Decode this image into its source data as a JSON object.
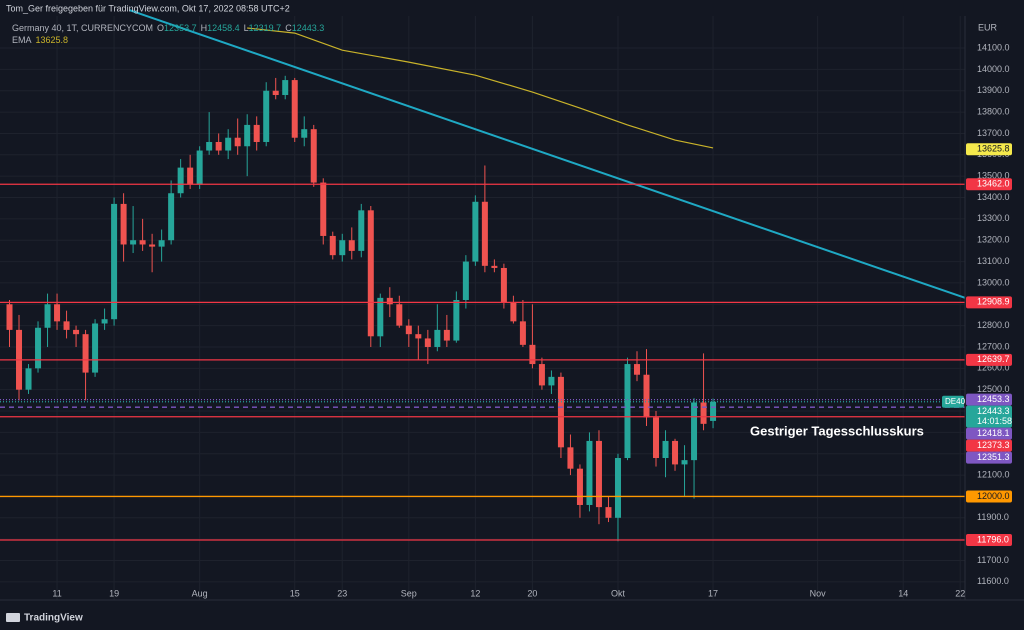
{
  "header": "Tom_Ger freigegeben für TradingView.com, Okt 17, 2022 08:58 UTC+2",
  "legend": {
    "symbol": "Germany 40, 1T, CURRENCYCOM",
    "ohlc": [
      {
        "key": "O",
        "value": "12353.7"
      },
      {
        "key": "H",
        "value": "12458.4"
      },
      {
        "key": "L",
        "value": "12319.7"
      },
      {
        "key": "C",
        "value": "12443.3"
      }
    ],
    "ema_name": "EMA",
    "ema_value": "13625.8"
  },
  "footer": "TradingView",
  "chart_data": {
    "type": "candlestick",
    "currency": "EUR",
    "annotation": "Gestriger Tagesschlusskurs",
    "up_color": "#26a69a",
    "down_color": "#ef5350",
    "xlim": [
      -1,
      100.5
    ],
    "ylim": [
      11515,
      14325
    ],
    "grid": true,
    "xticks": [
      {
        "value": 5,
        "label": "11"
      },
      {
        "value": 11,
        "label": "19"
      },
      {
        "value": 20,
        "label": "Aug"
      },
      {
        "value": 30,
        "label": "15"
      },
      {
        "value": 35,
        "label": "23"
      },
      {
        "value": 42,
        "label": "Sep"
      },
      {
        "value": 49,
        "label": "12"
      },
      {
        "value": 55,
        "label": "20"
      },
      {
        "value": 64,
        "label": "Okt"
      },
      {
        "value": 74,
        "label": "17"
      },
      {
        "value": 85,
        "label": "Nov"
      },
      {
        "value": 94,
        "label": "14"
      },
      {
        "value": 100,
        "label": "22"
      }
    ],
    "yticks": [
      {
        "value": 11600,
        "label": "11600.0"
      },
      {
        "value": 11700,
        "label": "11700.0"
      },
      {
        "value": 11800,
        "label": "11800.0"
      },
      {
        "value": 11900,
        "label": "11900.0"
      },
      {
        "value": 12000,
        "label": "12000.0"
      },
      {
        "value": 12100,
        "label": "12100.0"
      },
      {
        "value": 12200,
        "label": "12200.0"
      },
      {
        "value": 12300,
        "label": "12300.0"
      },
      {
        "value": 12400,
        "label": "12400.0"
      },
      {
        "value": 12500,
        "label": "12500.0"
      },
      {
        "value": 12600,
        "label": "12600.0"
      },
      {
        "value": 12700,
        "label": "12700.0"
      },
      {
        "value": 12800,
        "label": "12800.0"
      },
      {
        "value": 12900,
        "label": "12900.0"
      },
      {
        "value": 13000,
        "label": "13000.0"
      },
      {
        "value": 13100,
        "label": "13100.0"
      },
      {
        "value": 13200,
        "label": "13200.0"
      },
      {
        "value": 13300,
        "label": "13300.0"
      },
      {
        "value": 13400,
        "label": "13400.0"
      },
      {
        "value": 13500,
        "label": "13500.0"
      },
      {
        "value": 13600,
        "label": "13600.0"
      },
      {
        "value": 13700,
        "label": "13700.0"
      },
      {
        "value": 13800,
        "label": "13800.0"
      },
      {
        "value": 13900,
        "label": "13900.0"
      },
      {
        "value": 14000,
        "label": "14000.0"
      },
      {
        "value": 14100,
        "label": "14100.0"
      }
    ],
    "open": [
      12900,
      12780,
      12500,
      12600,
      12790,
      12900,
      12820,
      12780,
      12760,
      12580,
      12810,
      12830,
      13370,
      13180,
      13200,
      13180,
      13170,
      13200,
      13420,
      13540,
      13460,
      13620,
      13660,
      13620,
      13680,
      13640,
      13740,
      13660,
      13900,
      13880,
      13950,
      13680,
      13720,
      13470,
      13220,
      13130,
      13200,
      13150,
      13340,
      12750,
      12930,
      12900,
      12800,
      12760,
      12740,
      12700,
      12780,
      12730,
      12920,
      13100,
      13380,
      13080,
      13070,
      12910,
      12820,
      12710,
      12620,
      12520,
      12560,
      12230,
      12130,
      11960,
      12260,
      11950,
      11900,
      12180,
      12620,
      12570,
      12370,
      12180,
      12260,
      12150,
      12170,
      12440,
      12353.7
    ],
    "high": [
      12920,
      12850,
      12620,
      12820,
      12950,
      12950,
      12870,
      12800,
      12780,
      12830,
      12880,
      13400,
      13420,
      13360,
      13300,
      13230,
      13250,
      13480,
      13580,
      13600,
      13640,
      13800,
      13700,
      13720,
      13770,
      13790,
      13780,
      13940,
      13960,
      13970,
      13960,
      13780,
      13740,
      13490,
      13240,
      13230,
      13260,
      13370,
      13360,
      12950,
      12980,
      12940,
      12830,
      12800,
      12780,
      12900,
      12850,
      12960,
      13130,
      13410,
      13550,
      13110,
      13090,
      12940,
      12920,
      12900,
      12650,
      12590,
      12580,
      12290,
      12150,
      12300,
      12310,
      12000,
      12200,
      12650,
      12680,
      12690,
      12400,
      12310,
      12270,
      12240,
      12460,
      12670,
      12458.4
    ],
    "low": [
      12700,
      12450,
      12480,
      12580,
      12700,
      12780,
      12740,
      12700,
      12450,
      12560,
      12780,
      12800,
      13100,
      13140,
      13150,
      13050,
      13100,
      13180,
      13400,
      13440,
      13440,
      13600,
      13600,
      13580,
      13600,
      13500,
      13620,
      13640,
      13860,
      13860,
      13660,
      13640,
      13450,
      13180,
      13110,
      13100,
      13110,
      13120,
      12700,
      12700,
      12840,
      12790,
      12700,
      12640,
      12620,
      12680,
      12700,
      12720,
      12880,
      13080,
      13050,
      13050,
      12880,
      12810,
      12700,
      12600,
      12500,
      12480,
      12180,
      12100,
      11900,
      11930,
      11870,
      11880,
      11790,
      12170,
      12540,
      12330,
      12140,
      12090,
      12120,
      12000,
      11990,
      12310,
      12319.7
    ],
    "close": [
      12780,
      12500,
      12600,
      12790,
      12900,
      12820,
      12780,
      12760,
      12580,
      12810,
      12830,
      13370,
      13180,
      13200,
      13180,
      13170,
      13200,
      13420,
      13540,
      13460,
      13620,
      13660,
      13620,
      13680,
      13640,
      13740,
      13660,
      13900,
      13880,
      13950,
      13680,
      13720,
      13470,
      13220,
      13130,
      13200,
      13150,
      13340,
      12750,
      12930,
      12900,
      12800,
      12760,
      12740,
      12700,
      12780,
      12730,
      12920,
      13100,
      13380,
      13080,
      13070,
      12910,
      12820,
      12710,
      12620,
      12520,
      12560,
      12230,
      12130,
      11960,
      12260,
      11950,
      11900,
      12180,
      12620,
      12570,
      12370,
      12180,
      12260,
      12150,
      12170,
      12440,
      12340,
      12443.3
    ],
    "ema": {
      "color": "#c9b32a",
      "x": [
        25,
        30,
        35,
        42,
        49,
        55,
        60,
        65,
        70,
        74
      ],
      "values": [
        14194,
        14170,
        14090,
        14034,
        13973,
        13894,
        13819,
        13740,
        13669,
        13632
      ]
    },
    "trendline": {
      "color": "#1fa9c4",
      "x": [
        12.6,
        100.5
      ],
      "values": [
        14278,
        12930
      ]
    },
    "levels": [
      {
        "value": 13625.8,
        "label": "13625.8",
        "color": "#f5e94c",
        "line": "none",
        "text_color": "#131722"
      },
      {
        "value": 13462.0,
        "label": "13462.0",
        "color": "#f23645",
        "line": "solid",
        "text_color": "#ffffff"
      },
      {
        "value": 12908.9,
        "label": "12908.9",
        "color": "#f23645",
        "line": "solid",
        "text_color": "#ffffff"
      },
      {
        "value": 12639.7,
        "label": "12639.7",
        "color": "#f23645",
        "line": "solid",
        "text_color": "#ffffff"
      },
      {
        "value": 12453.3,
        "label": "12453.3",
        "color": "#7e57c2",
        "line": "dotted",
        "text_color": "#ffffff"
      },
      {
        "value": 12443.3,
        "label": "12443.3",
        "color": "#26a69a",
        "line": "dotted",
        "text_color": "#ffffff",
        "tag": "DE40",
        "countdown": "14:01:58"
      },
      {
        "value": 12418.1,
        "label": "12418.1",
        "color": "#7e57c2",
        "line": "dashed",
        "text_color": "#ffffff"
      },
      {
        "value": 12373.3,
        "label": "12373.3",
        "color": "#f23645",
        "line": "solid",
        "text_color": "#ffffff"
      },
      {
        "value": 12351.3,
        "label": "12351.3",
        "color": "#7e57c2",
        "line": "none",
        "text_color": "#ffffff"
      },
      {
        "value": 12000.0,
        "label": "12000.0",
        "color": "#ff9800",
        "line": "solid",
        "text_color": "#131722"
      },
      {
        "value": 11796.0,
        "label": "11796.0",
        "color": "#f23645",
        "line": "solid",
        "text_color": "#ffffff"
      }
    ]
  }
}
